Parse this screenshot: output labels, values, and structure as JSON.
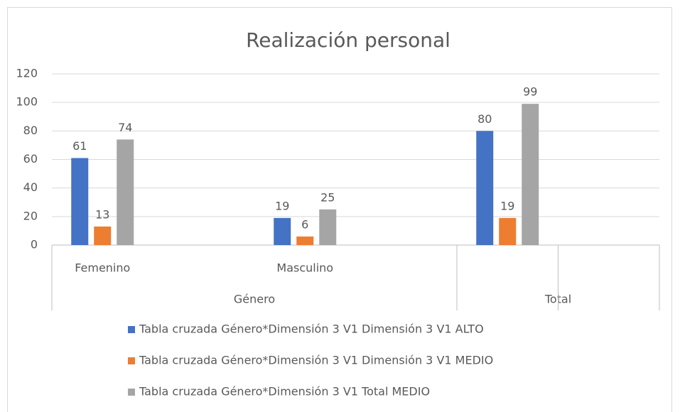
{
  "chart_data": {
    "type": "bar",
    "title": "Realización personal",
    "categories": [
      "Femenino",
      null,
      "Masculino",
      null,
      null,
      null
    ],
    "groups": [
      {
        "label": "Género",
        "span": 4
      },
      {
        "label": "Total",
        "span": 2
      }
    ],
    "series": [
      {
        "name": "Tabla cruzada Género*Dimensión 3 V1 Dimensión 3 V1 ALTO",
        "color": "#4472c4",
        "values": [
          61,
          null,
          19,
          null,
          80,
          null
        ]
      },
      {
        "name": "Tabla cruzada Género*Dimensión 3 V1 Dimensión 3 V1 MEDIO",
        "color": "#ed7d31",
        "values": [
          13,
          null,
          6,
          null,
          19,
          null
        ]
      },
      {
        "name": "Tabla cruzada Género*Dimensión 3 V1 Total MEDIO",
        "color": "#a5a5a5",
        "values": [
          74,
          null,
          25,
          null,
          99,
          null
        ]
      }
    ],
    "ylim": [
      0,
      120
    ],
    "yticks": [
      0,
      20,
      40,
      60,
      80,
      100,
      120
    ],
    "grid": true,
    "legend": "bottom"
  }
}
